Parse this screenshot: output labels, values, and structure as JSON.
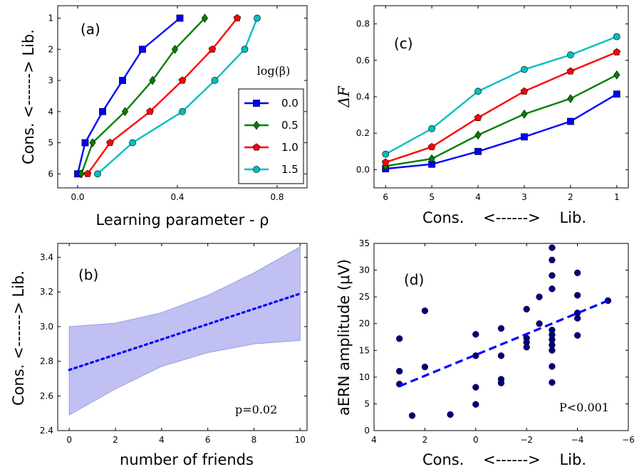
{
  "chart_data": [
    {
      "id": "a",
      "type": "line",
      "panel_label": "(a)",
      "xlabel": "Learning parameter - ρ",
      "ylabel": "Cons. <------> Lib.",
      "xlim": [
        -0.08,
        0.92
      ],
      "ylim": [
        6.45,
        0.6
      ],
      "xticks": [
        0.0,
        0.4,
        0.8
      ],
      "xtick_labels": [
        "0.0",
        "0.4",
        "0.8"
      ],
      "yticks": [
        1,
        2,
        3,
        4,
        5,
        6
      ],
      "ytick_labels": [
        "1",
        "2",
        "3",
        "4",
        "5",
        "6"
      ],
      "legend_title": "log(β)",
      "legend_location": "lower-right",
      "series": [
        {
          "name": "0.0",
          "color": "#0000ff",
          "marker": "square",
          "x": [
            0.0,
            0.03,
            0.1,
            0.18,
            0.26,
            0.41
          ],
          "y": [
            6,
            5,
            4,
            3,
            2,
            1
          ]
        },
        {
          "name": "0.5",
          "color": "#008000",
          "marker": "diamond",
          "x": [
            0.015,
            0.06,
            0.19,
            0.3,
            0.39,
            0.51
          ],
          "y": [
            6,
            5,
            4,
            3,
            2,
            1
          ]
        },
        {
          "name": "1.0",
          "color": "#ff0000",
          "marker": "pentagon",
          "x": [
            0.04,
            0.13,
            0.29,
            0.42,
            0.54,
            0.64
          ],
          "y": [
            6,
            5,
            4,
            3,
            2,
            1
          ]
        },
        {
          "name": "1.5",
          "color": "#00bfbf",
          "marker": "circle",
          "x": [
            0.08,
            0.22,
            0.42,
            0.55,
            0.67,
            0.72
          ],
          "y": [
            6,
            5,
            4,
            3,
            2,
            1
          ]
        }
      ]
    },
    {
      "id": "b",
      "type": "line",
      "panel_label": "(b)",
      "xlabel": "number of friends",
      "ylabel": "Cons. <------> Lib.",
      "annotation": "p=0.02",
      "xlim": [
        -0.5,
        10.3
      ],
      "ylim": [
        2.4,
        3.48
      ],
      "xticks": [
        0,
        2,
        4,
        6,
        8,
        10
      ],
      "xtick_labels": [
        "0",
        "2",
        "4",
        "6",
        "8",
        "10"
      ],
      "yticks": [
        2.4,
        2.6,
        2.8,
        3.0,
        3.2,
        3.4
      ],
      "ytick_labels": [
        "2.4",
        "2.6",
        "2.8",
        "3.0",
        "3.2",
        "3.4"
      ],
      "fit_line": {
        "x": [
          0,
          10
        ],
        "y": [
          2.75,
          3.19
        ],
        "color": "#0000ff",
        "style": "dotted"
      },
      "confidence_band": {
        "color": "#b5b5f0",
        "x": [
          0,
          2,
          4,
          6,
          8,
          10
        ],
        "upper": [
          3.0,
          3.02,
          3.08,
          3.18,
          3.31,
          3.46
        ],
        "lower": [
          2.49,
          2.64,
          2.77,
          2.85,
          2.9,
          2.92
        ]
      }
    },
    {
      "id": "c",
      "type": "line",
      "panel_label": "(c)",
      "xlabel": "Cons.    <------>    Lib.",
      "ylabel": "ΔF",
      "xlim": [
        6.25,
        0.75
      ],
      "ylim": [
        -0.1,
        0.9
      ],
      "xticks": [
        6,
        5,
        4,
        3,
        2,
        1
      ],
      "xtick_labels": [
        "6",
        "5",
        "4",
        "3",
        "2",
        "1"
      ],
      "yticks": [
        0.0,
        0.2,
        0.4,
        0.6,
        0.8
      ],
      "ytick_labels": [
        "0.0",
        "0.2",
        "0.4",
        "0.6",
        "0.8"
      ],
      "series": [
        {
          "name": "0.0",
          "color": "#0000ff",
          "marker": "square",
          "x": [
            6,
            5,
            4,
            3,
            2,
            1
          ],
          "y": [
            0.005,
            0.03,
            0.1,
            0.18,
            0.265,
            0.415
          ]
        },
        {
          "name": "0.5",
          "color": "#008000",
          "marker": "diamond",
          "x": [
            6,
            5,
            4,
            3,
            2,
            1
          ],
          "y": [
            0.02,
            0.06,
            0.19,
            0.305,
            0.39,
            0.52
          ]
        },
        {
          "name": "1.0",
          "color": "#ff0000",
          "marker": "pentagon",
          "x": [
            6,
            5,
            4,
            3,
            2,
            1
          ],
          "y": [
            0.04,
            0.125,
            0.285,
            0.43,
            0.54,
            0.645
          ]
        },
        {
          "name": "1.5",
          "color": "#00bfbf",
          "marker": "circle",
          "x": [
            6,
            5,
            4,
            3,
            2,
            1
          ],
          "y": [
            0.085,
            0.225,
            0.43,
            0.55,
            0.63,
            0.73
          ]
        }
      ]
    },
    {
      "id": "d",
      "type": "scatter",
      "panel_label": "(d)",
      "xlabel": "Cons.    <------>    Lib.",
      "ylabel": "aERN amplitude (μV)",
      "annotation": "P<0.001",
      "xlim": [
        4,
        -6
      ],
      "ylim": [
        0,
        35
      ],
      "xticks": [
        4,
        2,
        0,
        -2,
        -4,
        -6
      ],
      "xtick_labels": [
        "4",
        "2",
        "0",
        "−2",
        "−4",
        "−6"
      ],
      "yticks": [
        0,
        5,
        10,
        15,
        20,
        25,
        30,
        35
      ],
      "ytick_labels": [
        "0",
        "5",
        "10",
        "15",
        "20",
        "25",
        "30",
        "35"
      ],
      "points_color": "#000080",
      "fit_line": {
        "x": [
          3,
          -5.2
        ],
        "y": [
          8.3,
          24.3
        ],
        "color": "#0000ff",
        "style": "dashed"
      },
      "points": [
        [
          3,
          17.2
        ],
        [
          3,
          11.1
        ],
        [
          3,
          8.7
        ],
        [
          2.5,
          2.8
        ],
        [
          2,
          22.4
        ],
        [
          2,
          11.9
        ],
        [
          1,
          3.0
        ],
        [
          0,
          18.0
        ],
        [
          0,
          14.0
        ],
        [
          0,
          8.1
        ],
        [
          0,
          4.9
        ],
        [
          -1,
          19.1
        ],
        [
          -1,
          14.0
        ],
        [
          -1,
          9.6
        ],
        [
          -1,
          8.9
        ],
        [
          -2,
          22.7
        ],
        [
          -2,
          17.3
        ],
        [
          -2,
          16.5
        ],
        [
          -2,
          15.6
        ],
        [
          -2.5,
          25.0
        ],
        [
          -2.5,
          20.0
        ],
        [
          -3,
          34.2
        ],
        [
          -3,
          31.9
        ],
        [
          -3,
          29.0
        ],
        [
          -3,
          26.5
        ],
        [
          -3,
          18.8
        ],
        [
          -3,
          17.9
        ],
        [
          -3,
          17.0
        ],
        [
          -3,
          16.0
        ],
        [
          -3,
          15.0
        ],
        [
          -3,
          12.0
        ],
        [
          -3,
          9.0
        ],
        [
          -4,
          29.5
        ],
        [
          -4,
          25.3
        ],
        [
          -4,
          22.0
        ],
        [
          -4,
          21.0
        ],
        [
          -4,
          17.8
        ],
        [
          -5.2,
          24.3
        ]
      ]
    }
  ]
}
